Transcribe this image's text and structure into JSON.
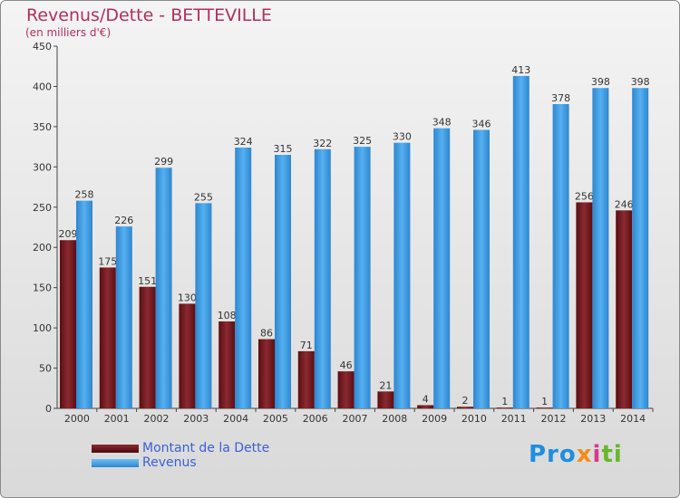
{
  "header": {
    "title": "Revenus/Dette - BETTEVILLE",
    "subtitle": "(en milliers d'€)"
  },
  "logo": {
    "text": "Proxiti"
  },
  "colors": {
    "debt": "#7a1f24",
    "revenue": "#3f9ee6",
    "title": "#b03060",
    "legend_text": "#3a5fd8"
  },
  "legend": {
    "items": [
      {
        "label": "Montant de la Dette",
        "color": "#6b1518"
      },
      {
        "label": "Revenus",
        "color": "#3f9ee6"
      }
    ]
  },
  "chart_data": {
    "type": "bar",
    "title": "Revenus/Dette - BETTEVILLE",
    "subtitle": "(en milliers d'€)",
    "categories": [
      "2000",
      "2001",
      "2002",
      "2003",
      "2004",
      "2005",
      "2006",
      "2007",
      "2008",
      "2009",
      "2010",
      "2011",
      "2012",
      "2013",
      "2014"
    ],
    "series": [
      {
        "name": "Montant de la Dette",
        "values": [
          209,
          175,
          151,
          130,
          108,
          86,
          71,
          46,
          21,
          4,
          2,
          1,
          1,
          256,
          246
        ]
      },
      {
        "name": "Revenus",
        "values": [
          258,
          226,
          299,
          255,
          324,
          315,
          322,
          325,
          330,
          348,
          346,
          413,
          378,
          398,
          398
        ]
      }
    ],
    "ylim": [
      0,
      450
    ],
    "yticks": [
      0,
      50,
      100,
      150,
      200,
      250,
      300,
      350,
      400,
      450
    ],
    "grid": false,
    "legend": "bottom-left"
  }
}
